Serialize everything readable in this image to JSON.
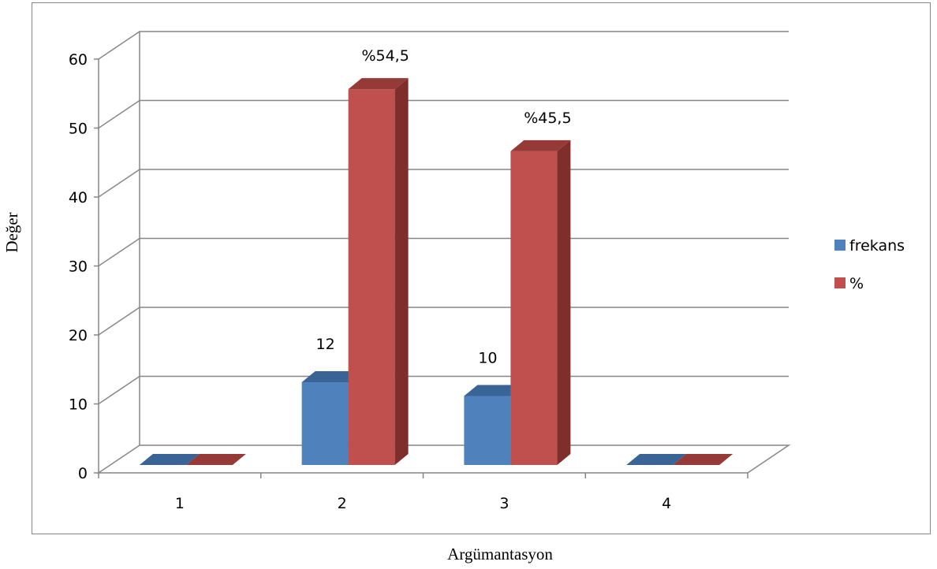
{
  "chart_data": {
    "type": "bar",
    "title": "",
    "xlabel": "Argümantasyon",
    "ylabel": "Değer",
    "categories": [
      "1",
      "2",
      "3",
      "4"
    ],
    "series": [
      {
        "name": "frekans",
        "values": [
          0,
          12,
          10,
          0
        ],
        "labels": [
          "",
          "12",
          "10",
          ""
        ],
        "color": "#4F81BD",
        "top_color": "#3A6496",
        "side_color": "#2D5487"
      },
      {
        "name": "%",
        "values": [
          0,
          54.5,
          45.5,
          0
        ],
        "labels": [
          "",
          "%54,5",
          "%45,5",
          ""
        ],
        "color": "#C0504D",
        "top_color": "#963A38",
        "side_color": "#7F2E2C"
      }
    ],
    "ylim": [
      0,
      60
    ],
    "yticks": [
      "0",
      "10",
      "20",
      "30",
      "40",
      "50",
      "60"
    ],
    "grid": true,
    "legend_position": "right",
    "style": "3d-column"
  }
}
